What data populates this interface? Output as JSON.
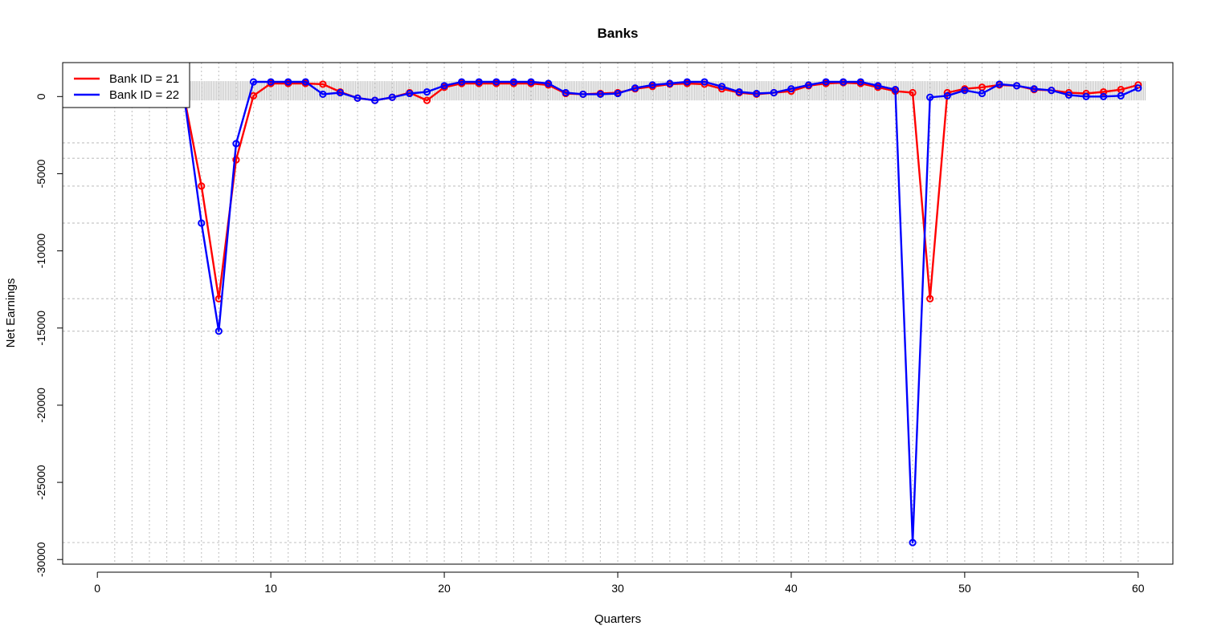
{
  "chart_data": {
    "type": "line",
    "title": "Banks",
    "xlabel": "Quarters",
    "ylabel": "Net Earnings",
    "xlim": [
      -2,
      62
    ],
    "ylim": [
      -30300,
      2200
    ],
    "x_ticks": [
      0,
      10,
      20,
      30,
      40,
      50,
      60
    ],
    "y_ticks": [
      0,
      -5000,
      -10000,
      -15000,
      -20000,
      -25000,
      -30000
    ],
    "grid": "dotted",
    "legend_position": "top-left",
    "x": [
      5,
      6,
      7,
      8,
      9,
      10,
      11,
      12,
      13,
      14,
      15,
      16,
      17,
      18,
      19,
      20,
      21,
      22,
      23,
      24,
      25,
      26,
      27,
      28,
      29,
      30,
      31,
      32,
      33,
      34,
      35,
      36,
      37,
      38,
      39,
      40,
      41,
      42,
      43,
      44,
      45,
      46,
      47,
      48,
      49,
      50,
      51,
      52,
      53,
      54,
      55,
      56,
      57,
      58,
      59,
      60
    ],
    "series": [
      {
        "name": "Bank ID = 21",
        "color": "#ff0000",
        "values": [
          0,
          -5800,
          -13100,
          -4100,
          50,
          850,
          850,
          850,
          800,
          300,
          -100,
          -250,
          -50,
          250,
          -250,
          600,
          850,
          850,
          850,
          850,
          850,
          750,
          200,
          150,
          200,
          250,
          500,
          650,
          800,
          850,
          800,
          500,
          250,
          150,
          250,
          350,
          700,
          850,
          900,
          850,
          600,
          350,
          250,
          -13100,
          250,
          500,
          600,
          750,
          700,
          450,
          400,
          250,
          200,
          300,
          450,
          750
        ]
      },
      {
        "name": "Bank ID = 22",
        "color": "#0000ff",
        "values": [
          0,
          -8200,
          -15200,
          -3050,
          950,
          950,
          950,
          950,
          150,
          250,
          -100,
          -250,
          -50,
          200,
          300,
          700,
          950,
          950,
          950,
          950,
          950,
          850,
          250,
          150,
          150,
          200,
          550,
          750,
          850,
          950,
          950,
          650,
          300,
          200,
          250,
          500,
          750,
          950,
          950,
          950,
          700,
          450,
          -28900,
          -50,
          50,
          400,
          200,
          800,
          700,
          500,
          400,
          100,
          0,
          0,
          50,
          550
        ]
      }
    ],
    "annotations": []
  }
}
